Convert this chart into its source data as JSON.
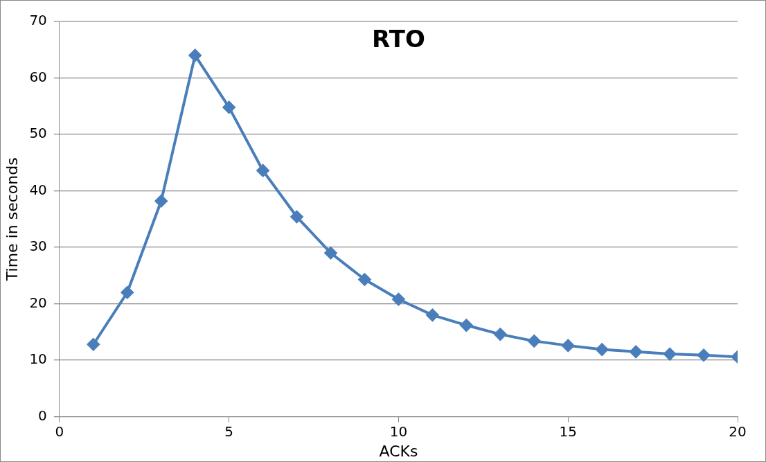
{
  "chart_data": {
    "type": "line",
    "title": "RTO",
    "xlabel": "ACKs",
    "ylabel": "Time in seconds",
    "x": [
      1,
      2,
      3,
      4,
      5,
      6,
      7,
      8,
      9,
      10,
      11,
      12,
      13,
      14,
      15,
      16,
      17,
      18,
      19,
      20
    ],
    "series": [
      {
        "color": "#4a7ebb",
        "values": [
          12.8,
          22.0,
          38.2,
          64.0,
          54.8,
          43.6,
          35.4,
          29.0,
          24.3,
          20.8,
          18.0,
          16.2,
          14.6,
          13.4,
          12.6,
          11.9,
          11.5,
          11.1,
          10.9,
          10.6
        ]
      }
    ],
    "xlim": [
      0,
      20
    ],
    "xticks": [
      0,
      5,
      10,
      15,
      20
    ],
    "ylim": [
      0,
      70
    ],
    "yticks": [
      0,
      10,
      20,
      30,
      40,
      50,
      60,
      70
    ],
    "grid": "y",
    "legend": false,
    "marker": "diamond",
    "line_style": "solid"
  }
}
